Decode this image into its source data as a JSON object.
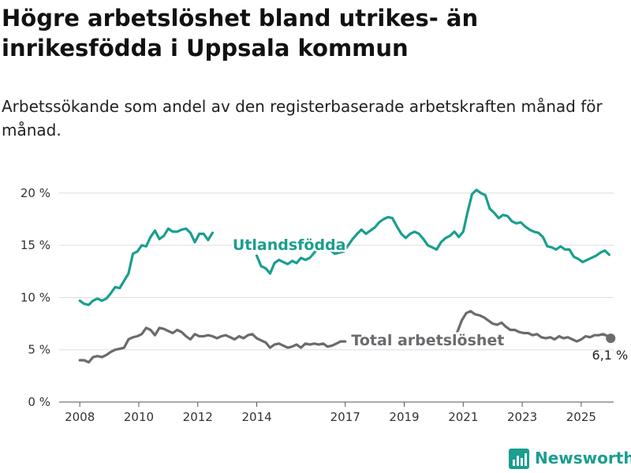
{
  "title": "Högre arbetslöshet bland utrikes- än inrikesfödda i Uppsala kommun",
  "subtitle": "Arbetssökande som andel av den registerbaserade arbetskraften månad för månad.",
  "brand": {
    "name": "Newsworthy",
    "color": "#1a9e8f"
  },
  "chart_data": {
    "type": "line",
    "yticks": [
      {
        "value": 0,
        "label": "0 %"
      },
      {
        "value": 5,
        "label": "5 %"
      },
      {
        "value": 10,
        "label": "10 %"
      },
      {
        "value": 15,
        "label": "15 %"
      },
      {
        "value": 20,
        "label": "20 %"
      }
    ],
    "xticks": [
      {
        "value": 2008,
        "label": "2008"
      },
      {
        "value": 2010,
        "label": "2010"
      },
      {
        "value": 2012,
        "label": "2012"
      },
      {
        "value": 2014,
        "label": "2014"
      },
      {
        "value": 2017,
        "label": "2017"
      },
      {
        "value": 2019,
        "label": "2019"
      },
      {
        "value": 2021,
        "label": "2021"
      },
      {
        "value": 2023,
        "label": "2023"
      },
      {
        "value": 2025,
        "label": "2025"
      }
    ],
    "ylim": [
      0,
      21.5
    ],
    "xlim": [
      2007.3,
      2026.1
    ],
    "series": [
      {
        "name": "Utlandsfödda",
        "color": "#1a9e8f",
        "segments": [
          [
            [
              2008.0,
              9.7
            ],
            [
              2008.15,
              9.4
            ],
            [
              2008.3,
              9.3
            ],
            [
              2008.45,
              9.7
            ],
            [
              2008.6,
              9.9
            ],
            [
              2008.75,
              9.7
            ],
            [
              2008.9,
              9.9
            ],
            [
              2009.05,
              10.4
            ],
            [
              2009.2,
              11.0
            ],
            [
              2009.35,
              10.9
            ],
            [
              2009.5,
              11.6
            ],
            [
              2009.65,
              12.3
            ],
            [
              2009.8,
              14.2
            ],
            [
              2009.95,
              14.4
            ],
            [
              2010.1,
              15.0
            ],
            [
              2010.25,
              14.9
            ],
            [
              2010.4,
              15.8
            ],
            [
              2010.55,
              16.4
            ],
            [
              2010.7,
              15.6
            ],
            [
              2010.85,
              15.9
            ],
            [
              2011.0,
              16.6
            ],
            [
              2011.15,
              16.3
            ],
            [
              2011.3,
              16.3
            ],
            [
              2011.45,
              16.5
            ],
            [
              2011.6,
              16.6
            ],
            [
              2011.75,
              16.2
            ],
            [
              2011.9,
              15.3
            ],
            [
              2012.05,
              16.1
            ],
            [
              2012.2,
              16.1
            ],
            [
              2012.35,
              15.5
            ],
            [
              2012.5,
              16.2
            ]
          ],
          [
            [
              2014.0,
              14.0
            ],
            [
              2014.15,
              13.0
            ],
            [
              2014.3,
              12.8
            ],
            [
              2014.45,
              12.3
            ],
            [
              2014.6,
              13.3
            ],
            [
              2014.75,
              13.6
            ],
            [
              2014.9,
              13.4
            ],
            [
              2015.05,
              13.2
            ],
            [
              2015.2,
              13.5
            ],
            [
              2015.35,
              13.3
            ],
            [
              2015.5,
              13.8
            ],
            [
              2015.65,
              13.6
            ],
            [
              2015.8,
              13.8
            ],
            [
              2015.95,
              14.3
            ],
            [
              2016.1,
              14.7
            ],
            [
              2016.25,
              14.9
            ]
          ],
          [
            [
              2016.5,
              14.5
            ],
            [
              2016.65,
              14.2
            ],
            [
              2016.8,
              14.3
            ],
            [
              2016.95,
              14.4
            ],
            [
              2017.1,
              15.0
            ],
            [
              2017.25,
              15.6
            ],
            [
              2017.4,
              16.1
            ],
            [
              2017.55,
              16.5
            ],
            [
              2017.7,
              16.1
            ],
            [
              2017.85,
              16.4
            ],
            [
              2018.0,
              16.7
            ],
            [
              2018.15,
              17.2
            ],
            [
              2018.3,
              17.5
            ],
            [
              2018.45,
              17.7
            ],
            [
              2018.6,
              17.6
            ],
            [
              2018.75,
              16.8
            ],
            [
              2018.9,
              16.1
            ],
            [
              2019.05,
              15.7
            ],
            [
              2019.2,
              16.1
            ],
            [
              2019.35,
              16.3
            ],
            [
              2019.5,
              16.1
            ],
            [
              2019.65,
              15.6
            ],
            [
              2019.8,
              15.0
            ],
            [
              2019.95,
              14.8
            ],
            [
              2020.1,
              14.6
            ],
            [
              2020.25,
              15.3
            ],
            [
              2020.4,
              15.7
            ],
            [
              2020.55,
              15.9
            ],
            [
              2020.7,
              16.3
            ],
            [
              2020.85,
              15.8
            ],
            [
              2021.0,
              16.3
            ],
            [
              2021.15,
              18.2
            ],
            [
              2021.3,
              19.9
            ],
            [
              2021.45,
              20.3
            ],
            [
              2021.6,
              20.0
            ],
            [
              2021.75,
              19.8
            ],
            [
              2021.9,
              18.5
            ],
            [
              2022.05,
              18.1
            ],
            [
              2022.2,
              17.6
            ],
            [
              2022.35,
              17.9
            ],
            [
              2022.5,
              17.8
            ],
            [
              2022.65,
              17.3
            ],
            [
              2022.8,
              17.1
            ],
            [
              2022.95,
              17.2
            ],
            [
              2023.1,
              16.8
            ],
            [
              2023.25,
              16.5
            ],
            [
              2023.4,
              16.3
            ],
            [
              2023.55,
              16.2
            ],
            [
              2023.7,
              15.8
            ],
            [
              2023.85,
              14.9
            ],
            [
              2024.0,
              14.8
            ],
            [
              2024.15,
              14.6
            ],
            [
              2024.3,
              14.9
            ],
            [
              2024.45,
              14.6
            ],
            [
              2024.6,
              14.6
            ],
            [
              2024.75,
              13.9
            ],
            [
              2024.9,
              13.7
            ],
            [
              2025.05,
              13.4
            ],
            [
              2025.2,
              13.6
            ],
            [
              2025.35,
              13.8
            ],
            [
              2025.5,
              14.0
            ],
            [
              2025.65,
              14.3
            ],
            [
              2025.8,
              14.5
            ],
            [
              2025.95,
              14.1
            ]
          ]
        ]
      },
      {
        "name": "Total arbetslöshet",
        "color": "#6b6b6f",
        "segments": [
          [
            [
              2008.0,
              4.0
            ],
            [
              2008.15,
              4.0
            ],
            [
              2008.3,
              3.8
            ],
            [
              2008.45,
              4.3
            ],
            [
              2008.6,
              4.4
            ],
            [
              2008.75,
              4.3
            ],
            [
              2008.9,
              4.5
            ],
            [
              2009.05,
              4.8
            ],
            [
              2009.2,
              5.0
            ],
            [
              2009.35,
              5.1
            ],
            [
              2009.5,
              5.2
            ],
            [
              2009.65,
              6.0
            ],
            [
              2009.8,
              6.2
            ],
            [
              2009.95,
              6.3
            ],
            [
              2010.1,
              6.5
            ],
            [
              2010.25,
              7.1
            ],
            [
              2010.4,
              6.9
            ],
            [
              2010.55,
              6.4
            ],
            [
              2010.7,
              7.1
            ],
            [
              2010.85,
              7.0
            ],
            [
              2011.0,
              6.8
            ],
            [
              2011.15,
              6.6
            ],
            [
              2011.3,
              6.9
            ],
            [
              2011.45,
              6.7
            ],
            [
              2011.6,
              6.3
            ],
            [
              2011.75,
              6.0
            ],
            [
              2011.9,
              6.5
            ],
            [
              2012.05,
              6.3
            ],
            [
              2012.2,
              6.3
            ],
            [
              2012.35,
              6.4
            ],
            [
              2012.5,
              6.3
            ],
            [
              2012.65,
              6.1
            ],
            [
              2012.8,
              6.3
            ],
            [
              2012.95,
              6.4
            ],
            [
              2013.1,
              6.2
            ],
            [
              2013.25,
              6.0
            ],
            [
              2013.4,
              6.3
            ],
            [
              2013.55,
              6.1
            ],
            [
              2013.7,
              6.4
            ],
            [
              2013.85,
              6.5
            ],
            [
              2014.0,
              6.1
            ],
            [
              2014.15,
              5.9
            ],
            [
              2014.3,
              5.7
            ],
            [
              2014.45,
              5.2
            ],
            [
              2014.6,
              5.5
            ],
            [
              2014.75,
              5.6
            ],
            [
              2014.9,
              5.4
            ],
            [
              2015.05,
              5.2
            ],
            [
              2015.2,
              5.3
            ],
            [
              2015.35,
              5.5
            ],
            [
              2015.5,
              5.2
            ],
            [
              2015.65,
              5.6
            ],
            [
              2015.8,
              5.5
            ],
            [
              2015.95,
              5.6
            ],
            [
              2016.1,
              5.5
            ],
            [
              2016.25,
              5.6
            ],
            [
              2016.4,
              5.3
            ],
            [
              2016.55,
              5.4
            ],
            [
              2016.7,
              5.6
            ],
            [
              2016.85,
              5.8
            ],
            [
              2017.0,
              5.8
            ]
          ],
          [
            [
              2020.8,
              6.7
            ],
            [
              2020.95,
              7.8
            ],
            [
              2021.1,
              8.5
            ],
            [
              2021.25,
              8.7
            ],
            [
              2021.4,
              8.4
            ],
            [
              2021.55,
              8.3
            ],
            [
              2021.7,
              8.1
            ],
            [
              2021.85,
              7.8
            ],
            [
              2022.0,
              7.5
            ],
            [
              2022.15,
              7.4
            ],
            [
              2022.3,
              7.6
            ],
            [
              2022.45,
              7.2
            ],
            [
              2022.6,
              6.9
            ],
            [
              2022.75,
              6.9
            ],
            [
              2022.9,
              6.7
            ],
            [
              2023.05,
              6.6
            ],
            [
              2023.2,
              6.6
            ],
            [
              2023.35,
              6.4
            ],
            [
              2023.5,
              6.5
            ],
            [
              2023.65,
              6.2
            ],
            [
              2023.8,
              6.1
            ],
            [
              2023.95,
              6.2
            ],
            [
              2024.1,
              6.0
            ],
            [
              2024.25,
              6.3
            ],
            [
              2024.4,
              6.1
            ],
            [
              2024.55,
              6.2
            ],
            [
              2024.7,
              6.0
            ],
            [
              2024.85,
              5.8
            ],
            [
              2025.0,
              6.0
            ],
            [
              2025.15,
              6.3
            ],
            [
              2025.3,
              6.2
            ],
            [
              2025.45,
              6.4
            ],
            [
              2025.6,
              6.4
            ],
            [
              2025.75,
              6.5
            ],
            [
              2025.9,
              6.3
            ],
            [
              2026.0,
              6.1
            ]
          ]
        ]
      }
    ],
    "annotations": [
      {
        "series": "Utlandsfödda",
        "text": "Utlandsfödda",
        "x": 2015.1,
        "y": 15.0,
        "color": "#1a9e8f"
      },
      {
        "series": "Total arbetslöshet",
        "text": "Total arbetslöshet",
        "x": 2019.8,
        "y": 5.9,
        "color": "#6b6b6f"
      }
    ],
    "end_label": {
      "x": 2026.0,
      "y": 6.1,
      "text": "6,1 %"
    }
  }
}
